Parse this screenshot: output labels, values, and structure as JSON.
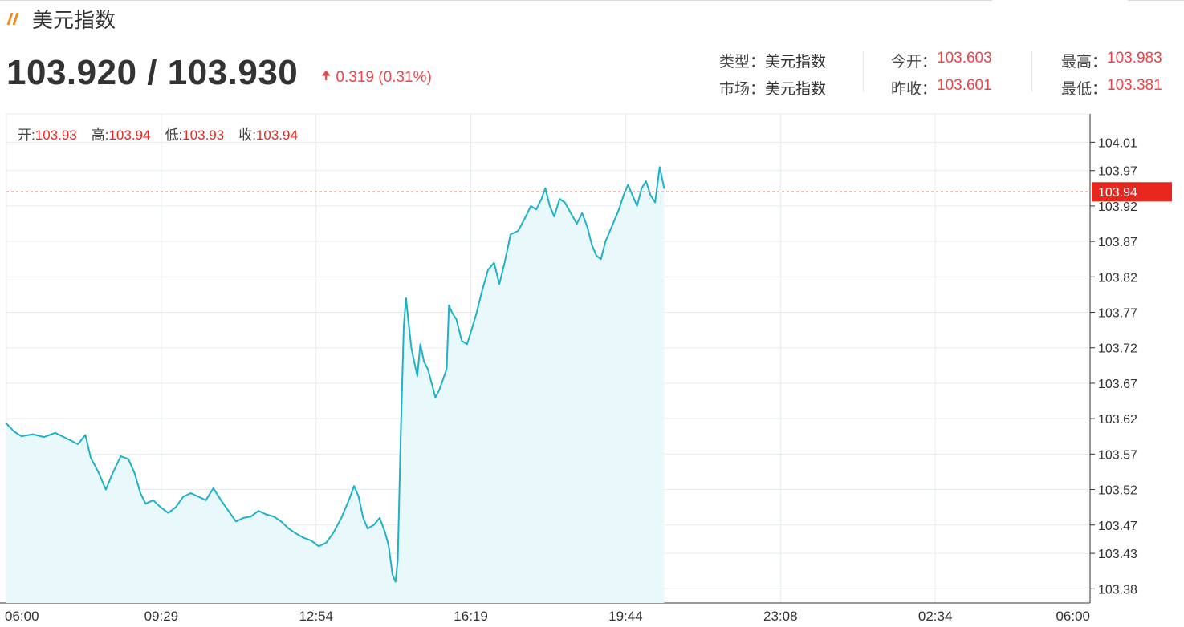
{
  "header": {
    "title": "美元指数",
    "price": "103.920 / 103.930",
    "change": "0.319 (0.31%)",
    "arrow_icon": "up-arrow-icon"
  },
  "stats": {
    "type_label": "类型：",
    "type_value": "美元指数",
    "market_label": "市场：",
    "market_value": "美元指数",
    "open_label": "今开：",
    "open_value": "103.603",
    "prev_close_label": "昨收：",
    "prev_close_value": "103.601",
    "high_label": "最高：",
    "high_value": "103.983",
    "low_label": "最低：",
    "low_value": "103.381"
  },
  "ohlc": {
    "open_label": "开:",
    "open_value": "103.93",
    "high_label": "高:",
    "high_value": "103.94",
    "low_label": "低:",
    "low_value": "103.93",
    "close_label": "收:",
    "close_value": "103.94"
  },
  "colors": {
    "line": "#1fb1c9",
    "fill": "#e9f8fa",
    "up": "#e8454c",
    "current_tag": "#e8281f",
    "grid": "#e4ecef"
  },
  "chart_data": {
    "type": "area",
    "x_ticks": [
      "06:00",
      "09:29",
      "12:54",
      "16:19",
      "19:44",
      "23:08",
      "02:34",
      "06:00"
    ],
    "y_ticks": [
      104.01,
      103.97,
      103.92,
      103.87,
      103.82,
      103.77,
      103.72,
      103.67,
      103.62,
      103.57,
      103.52,
      103.47,
      103.43,
      103.38
    ],
    "ylim": [
      103.36,
      104.05
    ],
    "x_unit": "minutes since 06:00",
    "x_range": [
      0,
      1440
    ],
    "current_price": 103.94,
    "current_label": "103.94",
    "series": [
      {
        "points": [
          [
            0,
            103.613
          ],
          [
            10,
            103.602
          ],
          [
            20,
            103.595
          ],
          [
            35,
            103.598
          ],
          [
            50,
            103.594
          ],
          [
            65,
            103.6
          ],
          [
            80,
            103.592
          ],
          [
            95,
            103.584
          ],
          [
            105,
            103.597
          ],
          [
            112,
            103.565
          ],
          [
            122,
            103.545
          ],
          [
            132,
            103.52
          ],
          [
            142,
            103.545
          ],
          [
            152,
            103.567
          ],
          [
            162,
            103.563
          ],
          [
            170,
            103.544
          ],
          [
            178,
            103.515
          ],
          [
            185,
            103.5
          ],
          [
            195,
            103.505
          ],
          [
            205,
            103.495
          ],
          [
            215,
            103.487
          ],
          [
            225,
            103.495
          ],
          [
            235,
            103.51
          ],
          [
            245,
            103.515
          ],
          [
            255,
            103.51
          ],
          [
            265,
            103.505
          ],
          [
            275,
            103.522
          ],
          [
            285,
            103.505
          ],
          [
            295,
            103.49
          ],
          [
            305,
            103.475
          ],
          [
            315,
            103.48
          ],
          [
            325,
            103.482
          ],
          [
            335,
            103.49
          ],
          [
            345,
            103.485
          ],
          [
            355,
            103.482
          ],
          [
            365,
            103.475
          ],
          [
            375,
            103.465
          ],
          [
            385,
            103.458
          ],
          [
            395,
            103.452
          ],
          [
            405,
            103.448
          ],
          [
            415,
            103.44
          ],
          [
            425,
            103.445
          ],
          [
            435,
            103.46
          ],
          [
            445,
            103.48
          ],
          [
            455,
            103.505
          ],
          [
            462,
            103.525
          ],
          [
            468,
            103.51
          ],
          [
            474,
            103.48
          ],
          [
            480,
            103.465
          ],
          [
            488,
            103.47
          ],
          [
            496,
            103.48
          ],
          [
            503,
            103.46
          ],
          [
            508,
            103.44
          ],
          [
            513,
            103.4
          ],
          [
            517,
            103.39
          ],
          [
            520,
            103.42
          ],
          [
            524,
            103.6
          ],
          [
            528,
            103.75
          ],
          [
            531,
            103.79
          ],
          [
            534,
            103.76
          ],
          [
            538,
            103.72
          ],
          [
            542,
            103.7
          ],
          [
            546,
            103.68
          ],
          [
            550,
            103.725
          ],
          [
            555,
            103.7
          ],
          [
            560,
            103.69
          ],
          [
            565,
            103.67
          ],
          [
            570,
            103.65
          ],
          [
            575,
            103.66
          ],
          [
            580,
            103.675
          ],
          [
            585,
            103.69
          ],
          [
            588,
            103.78
          ],
          [
            592,
            103.77
          ],
          [
            598,
            103.76
          ],
          [
            605,
            103.73
          ],
          [
            612,
            103.725
          ],
          [
            618,
            103.745
          ],
          [
            625,
            103.77
          ],
          [
            632,
            103.8
          ],
          [
            640,
            103.83
          ],
          [
            648,
            103.84
          ],
          [
            655,
            103.81
          ],
          [
            662,
            103.84
          ],
          [
            670,
            103.88
          ],
          [
            680,
            103.885
          ],
          [
            690,
            103.905
          ],
          [
            697,
            103.92
          ],
          [
            704,
            103.915
          ],
          [
            711,
            103.93
          ],
          [
            716,
            103.945
          ],
          [
            722,
            103.92
          ],
          [
            728,
            103.905
          ],
          [
            735,
            103.93
          ],
          [
            742,
            103.925
          ],
          [
            750,
            103.91
          ],
          [
            758,
            103.895
          ],
          [
            765,
            103.91
          ],
          [
            772,
            103.89
          ],
          [
            778,
            103.865
          ],
          [
            784,
            103.85
          ],
          [
            790,
            103.845
          ],
          [
            796,
            103.87
          ],
          [
            802,
            103.885
          ],
          [
            808,
            103.9
          ],
          [
            814,
            103.915
          ],
          [
            820,
            103.935
          ],
          [
            826,
            103.95
          ],
          [
            832,
            103.935
          ],
          [
            838,
            103.92
          ],
          [
            844,
            103.945
          ],
          [
            850,
            103.955
          ],
          [
            856,
            103.935
          ],
          [
            862,
            103.925
          ],
          [
            868,
            103.975
          ],
          [
            874,
            103.945
          ]
        ]
      }
    ]
  }
}
